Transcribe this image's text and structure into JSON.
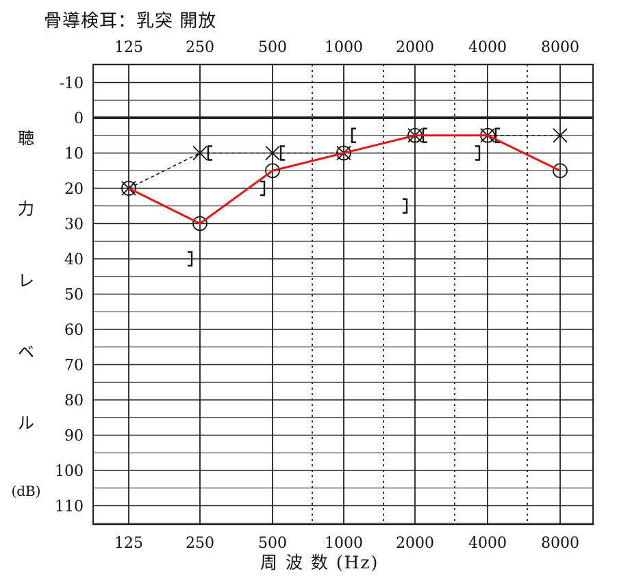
{
  "chart_data": {
    "type": "line",
    "title": "骨導検耳：乳突 開放",
    "xlabel": "周 波 数 (Hz)",
    "ylabel_chars": [
      "聴",
      "力",
      "レ",
      "ベ",
      "ル"
    ],
    "ylabel_unit": "(dB)",
    "x_categories": [
      "125",
      "250",
      "500",
      "1000",
      "2000",
      "4000",
      "8000"
    ],
    "x_tick_labels_top": [
      "125",
      "250",
      "500",
      "1000",
      "2000",
      "4000",
      "8000"
    ],
    "x_tick_labels_bottom": [
      "125",
      "250",
      "500",
      "1000",
      "2000",
      "4000",
      "8000"
    ],
    "y_ticks": [
      "-10",
      "0",
      "10",
      "20",
      "30",
      "40",
      "50",
      "60",
      "70",
      "80",
      "90",
      "100",
      "110"
    ],
    "ylim": [
      -10,
      110
    ],
    "y_inverted": true,
    "series": [
      {
        "marker": "circle",
        "line_style": "solid",
        "color": "#e01818",
        "x": [
          "125",
          "250",
          "500",
          "1000",
          "2000",
          "4000",
          "8000"
        ],
        "values": [
          20,
          30,
          15,
          10,
          5,
          5,
          15
        ]
      },
      {
        "marker": "cross",
        "line_style": "dashed",
        "color": "#111111",
        "x": [
          "125",
          "250",
          "500",
          "1000",
          "2000",
          "4000",
          "8000"
        ],
        "values": [
          20,
          10,
          10,
          10,
          5,
          5,
          5
        ]
      },
      {
        "marker": "bracket-left",
        "line_style": "none",
        "color": "#111111",
        "x": [
          "250",
          "500",
          "2000",
          "4000"
        ],
        "values": [
          40,
          20,
          25,
          10
        ]
      },
      {
        "marker": "bracket-right",
        "line_style": "none",
        "color": "#111111",
        "x": [
          "250",
          "500",
          "1000",
          "2000",
          "4000"
        ],
        "values": [
          10,
          10,
          5,
          5,
          5
        ]
      }
    ]
  }
}
